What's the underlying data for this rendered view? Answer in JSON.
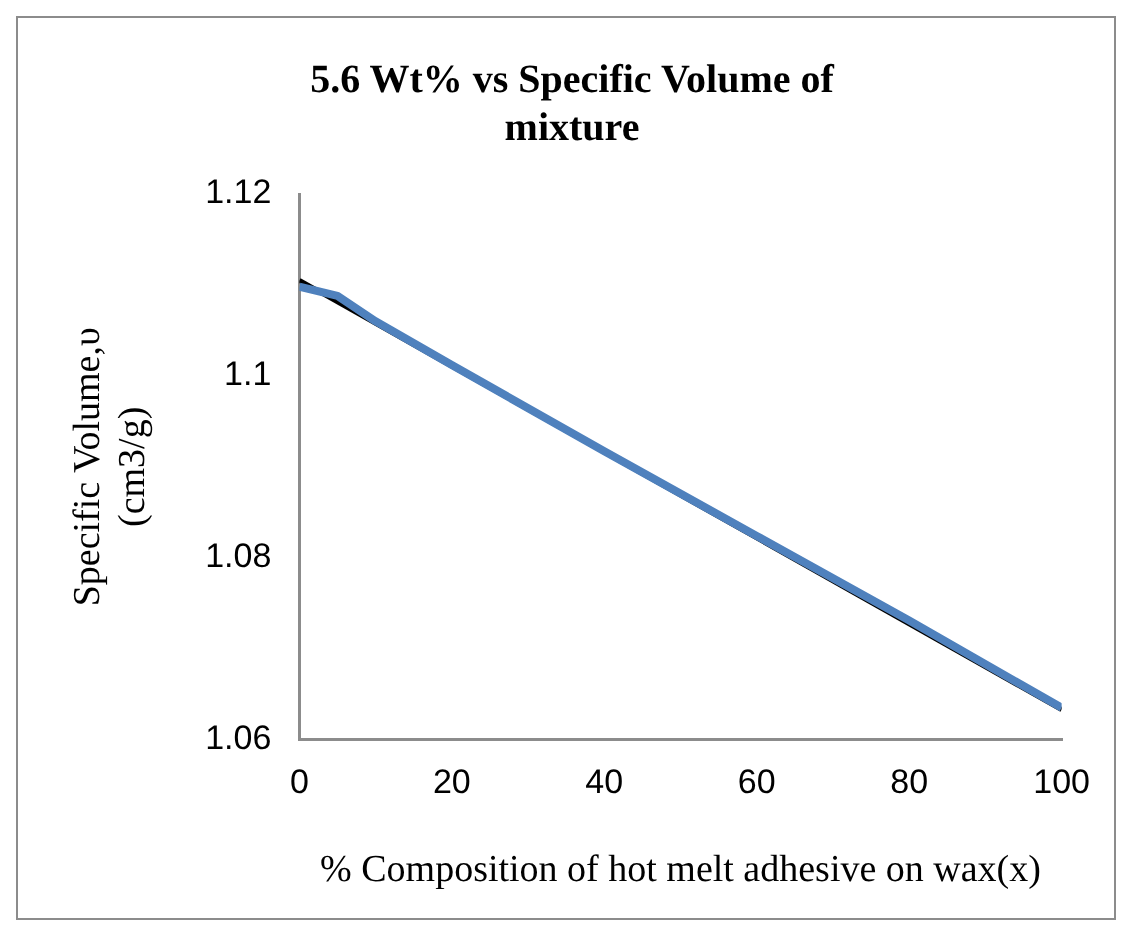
{
  "chart_data": {
    "type": "line",
    "title": "5.6 Wt% vs Specific Volume of mixture",
    "xlabel": "% Composition of hot melt adhesive on wax(x)",
    "ylabel": "Specific Volume,υ (cm3/g)",
    "xlim": [
      0,
      100
    ],
    "xticks": [
      0,
      20,
      40,
      60,
      80,
      100
    ],
    "ylim": [
      1.06,
      1.12
    ],
    "yticks": [
      1.06,
      1.08,
      1.1,
      1.12
    ],
    "grid": false,
    "legend": false,
    "marker": "none",
    "line_style": "solid",
    "series": [
      {
        "color": "#4f81bd",
        "x": [
          0,
          5,
          10,
          20,
          40,
          60,
          80,
          100
        ],
        "values": [
          1.1098,
          1.1088,
          1.106,
          1.1012,
          1.0917,
          1.0824,
          1.0731,
          1.0635
        ]
      },
      {
        "type": "line",
        "color": "#000000",
        "x": [
          0,
          100
        ],
        "values": [
          1.1105,
          1.0633
        ]
      }
    ]
  }
}
